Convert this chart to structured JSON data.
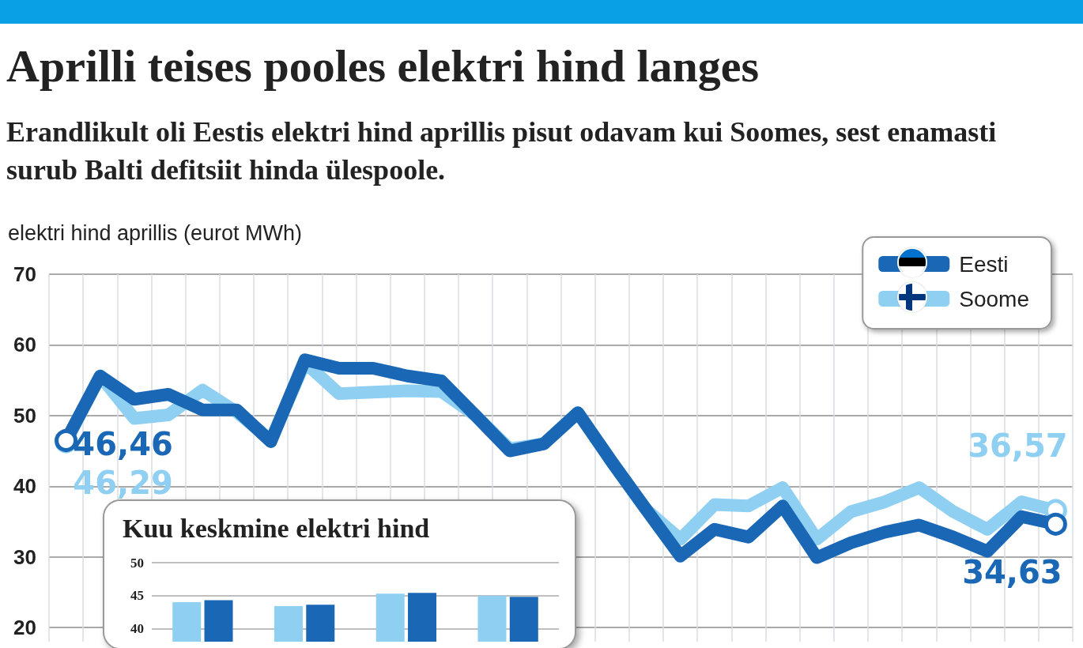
{
  "chart_data": [
    {
      "type": "line",
      "title": "Aprilli teises pooles elektri hind langes",
      "subtitle": "Erandlikult oli Eestis elektri hind aprillis pisut odavam kui Soomes, sest enamasti surub Balti defitsiit hinda ülespoole.",
      "ylabel": "elektri hind aprillis (eurot MWh)",
      "categories": [
        null,
        null,
        null,
        null,
        null,
        null,
        null,
        null,
        null,
        null,
        null,
        null,
        null,
        null,
        null,
        null,
        null,
        null,
        null,
        null,
        null,
        null,
        null,
        null,
        null,
        null,
        null,
        null,
        null,
        null
      ],
      "series": [
        {
          "name": "Eesti",
          "color": "#1a67b5",
          "values": [
            46.46,
            55.6,
            52.3,
            53.0,
            50.8,
            50.8,
            46.3,
            57.9,
            56.7,
            56.7,
            55.6,
            54.9,
            50.0,
            45.0,
            46.0,
            50.4,
            43.4,
            36.7,
            30.1,
            33.9,
            32.8,
            37.2,
            29.9,
            32.0,
            33.5,
            34.5,
            32.8,
            30.8,
            35.7,
            34.63
          ],
          "value_labels": [
            "46,46",
            null,
            null,
            null,
            null,
            null,
            null,
            null,
            null,
            null,
            null,
            null,
            null,
            null,
            null,
            null,
            null,
            null,
            null,
            null,
            null,
            null,
            null,
            null,
            null,
            null,
            null,
            null,
            null,
            "34,63"
          ]
        },
        {
          "name": "Soome",
          "color": "#8fd0f2",
          "values": [
            46.29,
            55.6,
            49.6,
            50.1,
            53.6,
            50.5,
            46.5,
            57.5,
            53.1,
            53.3,
            53.5,
            53.4,
            50.0,
            45.3,
            46.0,
            50.4,
            43.4,
            36.7,
            32.5,
            37.4,
            37.2,
            39.8,
            32.5,
            36.4,
            37.8,
            39.8,
            36.4,
            33.9,
            37.8,
            36.57
          ],
          "value_labels": [
            "46,29",
            null,
            null,
            null,
            null,
            null,
            null,
            null,
            null,
            null,
            null,
            null,
            null,
            null,
            null,
            null,
            null,
            null,
            null,
            null,
            null,
            null,
            null,
            null,
            null,
            null,
            null,
            null,
            null,
            "36,57"
          ]
        }
      ],
      "ylim": [
        18,
        70
      ],
      "yticks": [
        20,
        30,
        40,
        50,
        60,
        70
      ],
      "grid": true,
      "legend": "top right",
      "marker": "none",
      "line_style": "solid"
    },
    {
      "type": "bar",
      "title": "Kuu keskmine elektri hind",
      "categories": [
        null,
        null,
        null,
        null
      ],
      "series": [
        {
          "color": "#8fd0f2",
          "values": [
            44.0,
            43.4,
            45.3,
            45.0
          ]
        },
        {
          "color": "#1a67b5",
          "values": [
            44.3,
            43.6,
            45.4,
            44.8
          ]
        }
      ],
      "ylim": [
        38,
        50
      ],
      "yticks": [
        40,
        45,
        50
      ],
      "grid": "y"
    }
  ]
}
